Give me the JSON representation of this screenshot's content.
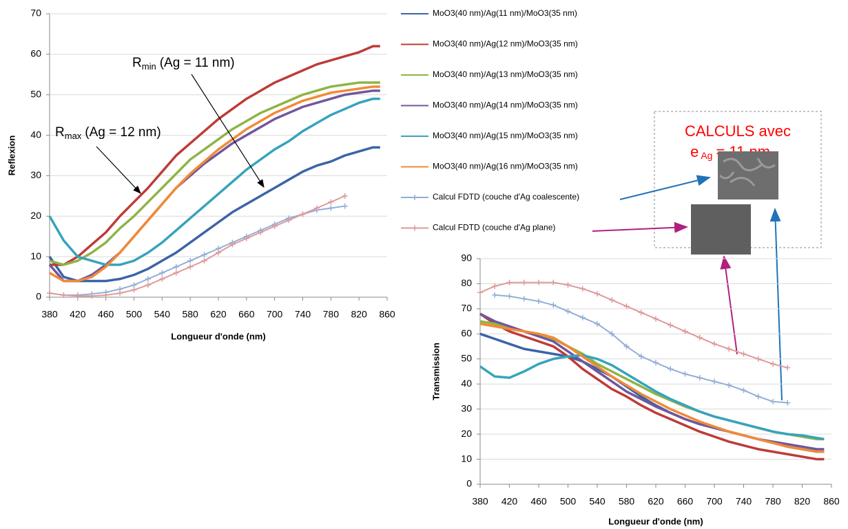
{
  "chart_data": [
    {
      "type": "line",
      "y_label": "Reflexion",
      "x_label": "Longueur d'onde (nm)",
      "x": [
        380,
        400,
        420,
        440,
        460,
        480,
        500,
        520,
        540,
        560,
        580,
        600,
        620,
        640,
        660,
        680,
        700,
        720,
        740,
        760,
        780,
        800,
        820,
        840,
        850
      ],
      "xlim": [
        380,
        860
      ],
      "xticks": [
        380,
        420,
        460,
        500,
        540,
        580,
        620,
        660,
        700,
        740,
        780,
        820,
        860
      ],
      "ylim": [
        0,
        70
      ],
      "yticks": [
        0,
        10,
        20,
        30,
        40,
        50,
        60,
        70
      ],
      "grid": true,
      "series": [
        {
          "name": "MoO3(40 nm)/Ag(11 nm)/MoO3(35 nm)",
          "color": "#3c63a8",
          "values": [
            10,
            5,
            4,
            4,
            4,
            4.5,
            5.5,
            7,
            9,
            11,
            13.5,
            16,
            18.5,
            21,
            23,
            25,
            27,
            29,
            31,
            32.5,
            33.5,
            35,
            36,
            37,
            37
          ]
        },
        {
          "name": "MoO3(40 nm)/Ag(12 nm)/MoO3(35 nm)",
          "color": "#be3b37",
          "values": [
            8,
            8,
            10,
            13,
            16,
            20,
            23.5,
            27,
            31,
            35,
            38,
            41,
            44,
            46.5,
            49,
            51,
            53,
            54.5,
            56,
            57.5,
            58.5,
            59.5,
            60.5,
            62,
            62
          ]
        },
        {
          "name": "MoO3(40 nm)/Ag(13 nm)/MoO3(35 nm)",
          "color": "#8eb446",
          "values": [
            9,
            8,
            9,
            11,
            13.5,
            17,
            20,
            23.5,
            27,
            30.5,
            34,
            36.5,
            39,
            41.5,
            43.5,
            45.5,
            47,
            48.5,
            50,
            51,
            52,
            52.5,
            53,
            53,
            53
          ]
        },
        {
          "name": "MoO3(40 nm)/Ag(14 nm)/MoO3(35 nm)",
          "color": "#71569b",
          "values": [
            8,
            4,
            4,
            5.5,
            8,
            11,
            15,
            19,
            23,
            27,
            30,
            33,
            35.5,
            38,
            40,
            42,
            44,
            45.5,
            47,
            48,
            49,
            50,
            50.5,
            51,
            51
          ]
        },
        {
          "name": "MoO3(40 nm)/Ag(15 nm)/MoO3(35 nm)",
          "color": "#36a3bc",
          "values": [
            20,
            14,
            10,
            9,
            8,
            8,
            9,
            11,
            13.5,
            16.5,
            19.5,
            22.5,
            25.5,
            28.5,
            31.5,
            34,
            36.5,
            38.5,
            41,
            43,
            45,
            46.5,
            48,
            49,
            49
          ]
        },
        {
          "name": "MoO3(40 nm)/Ag(16 nm)/MoO3(35 nm)",
          "color": "#f28a35",
          "values": [
            6,
            4,
            4,
            5,
            7.5,
            11,
            15,
            19,
            23,
            27,
            30.5,
            33.5,
            36.5,
            39,
            41.5,
            43.5,
            45.5,
            47,
            48.5,
            49.5,
            50.5,
            51,
            51.5,
            52,
            52
          ]
        },
        {
          "name": "Calcul FDTD (couche d'Ag coalescente)",
          "color": "#93aed6",
          "marker": "plus",
          "values": [
            1,
            0.5,
            0.5,
            0.8,
            1.2,
            2,
            3,
            4.5,
            6,
            7.5,
            9,
            10.5,
            12,
            13.5,
            15,
            16.5,
            18,
            19.5,
            20.5,
            21.5,
            22,
            22.5,
            null,
            null,
            null
          ]
        },
        {
          "name": "Calcul FDTD (couche d'Ag plane)",
          "color": "#de9a9a",
          "marker": "plus",
          "values": [
            1,
            0.5,
            0.3,
            0.3,
            0.5,
            1,
            1.8,
            3,
            4.5,
            6,
            7.5,
            9,
            11,
            13,
            14.5,
            16,
            17.5,
            19,
            20.5,
            22,
            23.5,
            25,
            null,
            null,
            null
          ]
        }
      ],
      "annotations": [
        {
          "text": "R",
          "sub": "min",
          "rest": "(Ag = 11 nm)"
        },
        {
          "text": "R",
          "sub": "max",
          "rest": "(Ag = 12 nm)"
        }
      ]
    },
    {
      "type": "line",
      "y_label": "Transmission",
      "x_label": "Longueur d'onde (nm)",
      "x": [
        380,
        400,
        420,
        440,
        460,
        480,
        500,
        520,
        540,
        560,
        580,
        600,
        620,
        640,
        660,
        680,
        700,
        720,
        740,
        760,
        780,
        800,
        820,
        840,
        850
      ],
      "xlim": [
        380,
        860
      ],
      "xticks": [
        380,
        420,
        460,
        500,
        540,
        580,
        620,
        660,
        700,
        740,
        780,
        820,
        860
      ],
      "ylim": [
        0,
        90
      ],
      "yticks": [
        0,
        10,
        20,
        30,
        40,
        50,
        60,
        70,
        80,
        90
      ],
      "grid": true,
      "series": [
        {
          "color": "#3c63a8",
          "values": [
            60,
            58,
            56,
            54,
            53,
            52,
            51,
            49,
            46,
            43,
            39,
            35,
            31.5,
            28.5,
            26,
            24,
            22.5,
            21,
            19.5,
            18,
            16.5,
            15,
            14,
            13,
            13
          ]
        },
        {
          "color": "#be3b37",
          "values": [
            68,
            64,
            61,
            59,
            57,
            55,
            51,
            46,
            42,
            38,
            35,
            31.5,
            28.5,
            26,
            23.5,
            21,
            19,
            17,
            15.5,
            14,
            13,
            12,
            11,
            10,
            10
          ]
        },
        {
          "color": "#8eb446",
          "values": [
            65,
            64,
            62,
            61,
            60,
            58,
            55,
            52,
            48,
            45,
            42,
            39,
            36,
            33.5,
            31,
            29,
            27,
            25.5,
            24,
            22.5,
            21,
            20,
            19,
            18,
            18
          ]
        },
        {
          "color": "#71569b",
          "values": [
            68,
            65,
            63,
            61,
            59,
            57,
            53,
            49,
            45,
            41,
            37,
            34,
            31,
            28.5,
            26,
            24,
            22.5,
            21,
            19.5,
            18,
            17,
            16,
            15,
            14,
            14
          ]
        },
        {
          "color": "#36a3bc",
          "values": [
            47,
            43,
            42.5,
            45,
            48,
            50,
            51,
            51.5,
            50,
            47.5,
            44,
            40.5,
            37,
            34,
            31.5,
            29,
            27,
            25.5,
            24,
            22.5,
            21,
            20,
            19.5,
            18.5,
            18
          ]
        },
        {
          "color": "#f28a35",
          "values": [
            64,
            63,
            62,
            61,
            60,
            58.5,
            55,
            51,
            47,
            43,
            39.5,
            36,
            33,
            30,
            27.5,
            25,
            23,
            21,
            19.5,
            18,
            16.5,
            15,
            14,
            13,
            13
          ]
        },
        {
          "color": "#93aed6",
          "marker": "plus",
          "values": [
            null,
            75.5,
            75,
            74,
            73,
            71.5,
            69,
            66.5,
            64,
            60,
            55,
            51,
            48.5,
            46,
            44,
            42.5,
            41,
            39.5,
            37.5,
            35,
            33,
            32.5,
            null,
            null,
            null
          ]
        },
        {
          "color": "#de9a9a",
          "marker": "plus",
          "values": [
            76.5,
            79,
            80.5,
            80.5,
            80.5,
            80.5,
            79.5,
            78,
            76,
            73.5,
            71,
            68.5,
            66,
            63.5,
            61,
            58.5,
            56,
            54,
            52,
            50,
            48,
            46.5,
            null,
            null,
            null
          ]
        }
      ]
    }
  ],
  "calculs_box": {
    "line1": "CALCULS avec",
    "e": "e",
    "sub": "Ag",
    "rest": "= 11 nm"
  }
}
